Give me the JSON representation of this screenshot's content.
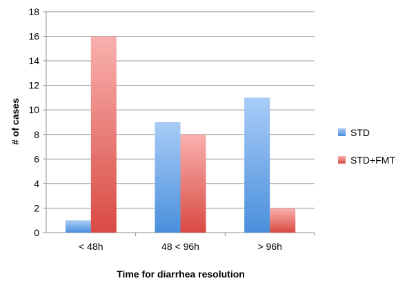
{
  "chart_data": {
    "type": "bar",
    "categories": [
      "< 48h",
      "48 < 96h",
      "> 96h"
    ],
    "series": [
      {
        "name": "STD",
        "values": [
          1,
          9,
          11
        ],
        "color_top": "#a9ccf7",
        "color_bottom": "#4a8fdc"
      },
      {
        "name": "STD+FMT",
        "values": [
          16,
          8,
          2
        ],
        "color_top": "#f9b1ae",
        "color_bottom": "#d94a43"
      }
    ],
    "title": "",
    "xlabel": "Time for diarrhea resolution",
    "ylabel": "# of cases",
    "ylim": [
      0,
      18
    ],
    "yticks": [
      "0",
      "2",
      "4",
      "6",
      "8",
      "10",
      "12",
      "14",
      "16",
      "18"
    ],
    "grid": true,
    "legend_position": "right"
  }
}
